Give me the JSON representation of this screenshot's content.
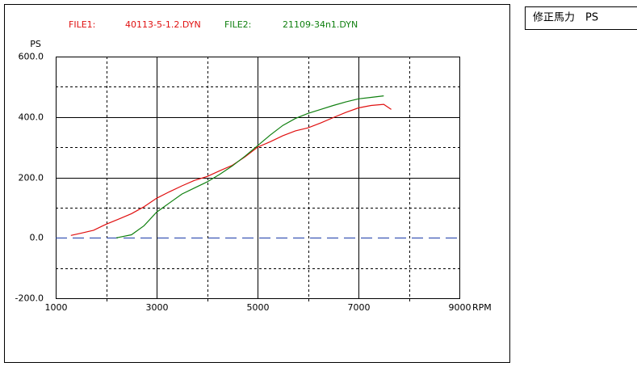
{
  "chart_data": {
    "type": "line",
    "x_label": "RPM",
    "y_label": "PS",
    "xlim": [
      1000,
      9000
    ],
    "xticks": [
      1000,
      3000,
      5000,
      7000,
      9000
    ],
    "x_minor_ticks": [
      2000,
      4000,
      6000,
      8000
    ],
    "ylim": [
      -200,
      600
    ],
    "yticks": [
      {
        "value": 600,
        "label": "600.0"
      },
      {
        "value": 400,
        "label": "400.0"
      },
      {
        "value": 200,
        "label": "200.0"
      },
      {
        "value": 0,
        "label": "0.0"
      },
      {
        "value": -200,
        "label": "-200.0"
      }
    ],
    "y_minor_ticks": [
      500,
      300,
      100,
      -100
    ],
    "zero_line_color": "#1a3aa8",
    "grid": true,
    "series": [
      {
        "file_label": "FILE1:",
        "name": "40113-5-1.2.DYN",
        "color": "#e01010",
        "x": [
          1300,
          1500,
          1750,
          2000,
          2250,
          2500,
          2750,
          3000,
          3250,
          3500,
          3750,
          4000,
          4250,
          4500,
          4750,
          5000,
          5250,
          5500,
          5750,
          6000,
          6250,
          6500,
          6750,
          7000,
          7250,
          7500,
          7650
        ],
        "values": [
          8,
          15,
          25,
          45,
          62,
          80,
          103,
          131,
          152,
          172,
          190,
          203,
          222,
          240,
          268,
          300,
          318,
          338,
          354,
          364,
          380,
          398,
          415,
          430,
          438,
          442,
          425
        ]
      },
      {
        "file_label": "FILE2:",
        "name": "21109-34n1.DYN",
        "color": "#108010",
        "x": [
          2200,
          2500,
          2750,
          3000,
          3250,
          3500,
          3750,
          4000,
          4250,
          4500,
          4750,
          5000,
          5250,
          5500,
          5750,
          6000,
          6250,
          6500,
          6750,
          7000,
          7250,
          7500
        ],
        "values": [
          0,
          10,
          40,
          85,
          115,
          145,
          165,
          185,
          210,
          238,
          270,
          305,
          340,
          372,
          395,
          412,
          425,
          438,
          450,
          460,
          465,
          470
        ]
      }
    ]
  },
  "side_panel": {
    "label": "修正馬力　PS"
  }
}
